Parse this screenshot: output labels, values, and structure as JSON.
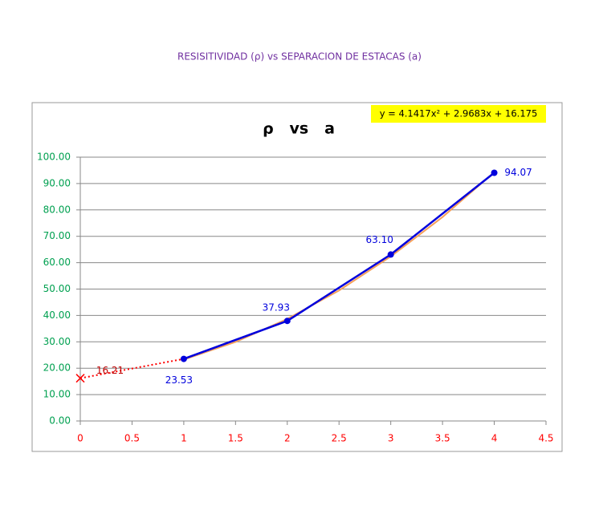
{
  "page_title": "RESISITIVIDAD (ρ) vs SEPARACION DE ESTACAS (a)",
  "chart_data": {
    "type": "line",
    "title": "ρ   vs   a",
    "equation": "y = 4.1417x² + 2.9683x + 16.175",
    "xlim": [
      0,
      4.5
    ],
    "xticks": [
      0,
      0.5,
      1,
      1.5,
      2,
      2.5,
      3,
      3.5,
      4,
      4.5
    ],
    "ylim": [
      0,
      100
    ],
    "yticks": [
      {
        "value": 0,
        "label": "0.00"
      },
      {
        "value": 10,
        "label": "10.00"
      },
      {
        "value": 20,
        "label": "20.00"
      },
      {
        "value": 30,
        "label": "30.00"
      },
      {
        "value": 40,
        "label": "40.00"
      },
      {
        "value": 50,
        "label": "50.00"
      },
      {
        "value": 60,
        "label": "60.00"
      },
      {
        "value": 70,
        "label": "70.00"
      },
      {
        "value": 80,
        "label": "80.00"
      },
      {
        "value": 90,
        "label": "90.00"
      },
      {
        "value": 100,
        "label": "100.00"
      }
    ],
    "grid": true,
    "series": [
      {
        "color": "#f5a05a",
        "x": [
          1,
          1.5,
          2,
          2.5,
          3,
          3.5,
          4
        ],
        "values": [
          23.285,
          29.946,
          38.678,
          49.481,
          62.355,
          77.3,
          94.315
        ]
      },
      {
        "color": "#ff0000",
        "x": [
          0,
          1
        ],
        "values": [
          16.21,
          23.53
        ]
      },
      {
        "color": "#0000dd",
        "x": [
          1,
          2,
          3,
          4
        ],
        "values": [
          23.53,
          37.93,
          63.1,
          94.07
        ],
        "value_labels": [
          "23.53",
          "37.93",
          "63.10",
          "94.07"
        ]
      }
    ]
  }
}
